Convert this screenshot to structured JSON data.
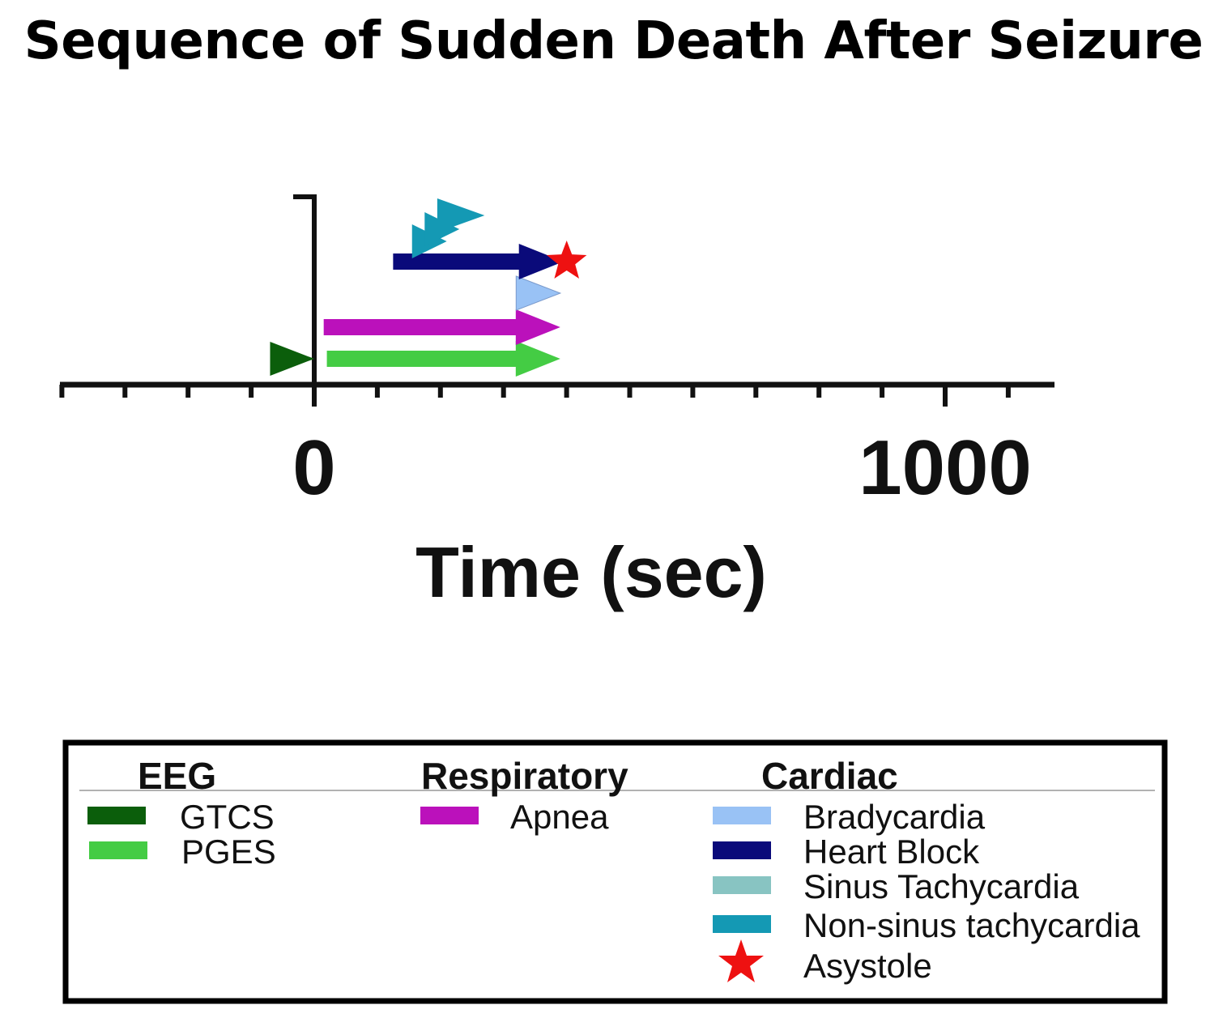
{
  "chart_data": {
    "type": "timeline",
    "title": "Sequence of Sudden Death After Seizure",
    "xlabel": "Time (sec)",
    "xlim": [
      -400,
      1170
    ],
    "major_ticks": [
      0,
      1000
    ],
    "tick_labels": [
      "0",
      "1000"
    ],
    "minor_tick_step": 100,
    "events": [
      {
        "name": "GTCS",
        "start": -70,
        "end": 0,
        "color": "#0b5e0b",
        "shape": "flag"
      },
      {
        "name": "PGES",
        "start": 20,
        "end": 390,
        "color": "#44cc44",
        "shape": "arrow"
      },
      {
        "name": "Apnea",
        "start": 15,
        "end": 390,
        "color": "#bb11bb",
        "shape": "arrow"
      },
      {
        "name": "Bradycardia",
        "start": 320,
        "end": 390,
        "color": "#99c2f5",
        "shape": "flag"
      },
      {
        "name": "Heart Block",
        "start": 125,
        "end": 395,
        "color": "#0a0a7a",
        "shape": "arrow"
      },
      {
        "name": "Asystole",
        "at": 395,
        "color": "#ee1111",
        "shape": "star"
      },
      {
        "name": "Non-sinus tachycardia",
        "start": 155,
        "end": 210,
        "color": "#1499b4",
        "shape": "flag"
      },
      {
        "name": "Non-sinus tachycardia",
        "start": 175,
        "end": 230,
        "color": "#1499b4",
        "shape": "flag"
      },
      {
        "name": "Non-sinus tachycardia",
        "start": 195,
        "end": 270,
        "color": "#1499b4",
        "shape": "flag"
      }
    ]
  },
  "legend": {
    "groups": [
      {
        "heading": "EEG",
        "items": [
          {
            "label": "GTCS",
            "color": "#0b5e0b",
            "marker": "bar"
          },
          {
            "label": "PGES",
            "color": "#44cc44",
            "marker": "bar"
          }
        ]
      },
      {
        "heading": "Respiratory",
        "items": [
          {
            "label": "Apnea",
            "color": "#bb11bb",
            "marker": "bar"
          }
        ]
      },
      {
        "heading": "Cardiac",
        "items": [
          {
            "label": "Bradycardia",
            "color": "#99c2f5",
            "marker": "bar"
          },
          {
            "label": "Heart Block",
            "color": "#0a0a7a",
            "marker": "bar"
          },
          {
            "label": "Sinus Tachycardia",
            "color": "#88c4c2",
            "marker": "bar"
          },
          {
            "label": "Non-sinus tachycardia",
            "color": "#1499b4",
            "marker": "bar"
          },
          {
            "label": "Asystole",
            "color": "#ee1111",
            "marker": "star"
          }
        ]
      }
    ]
  }
}
